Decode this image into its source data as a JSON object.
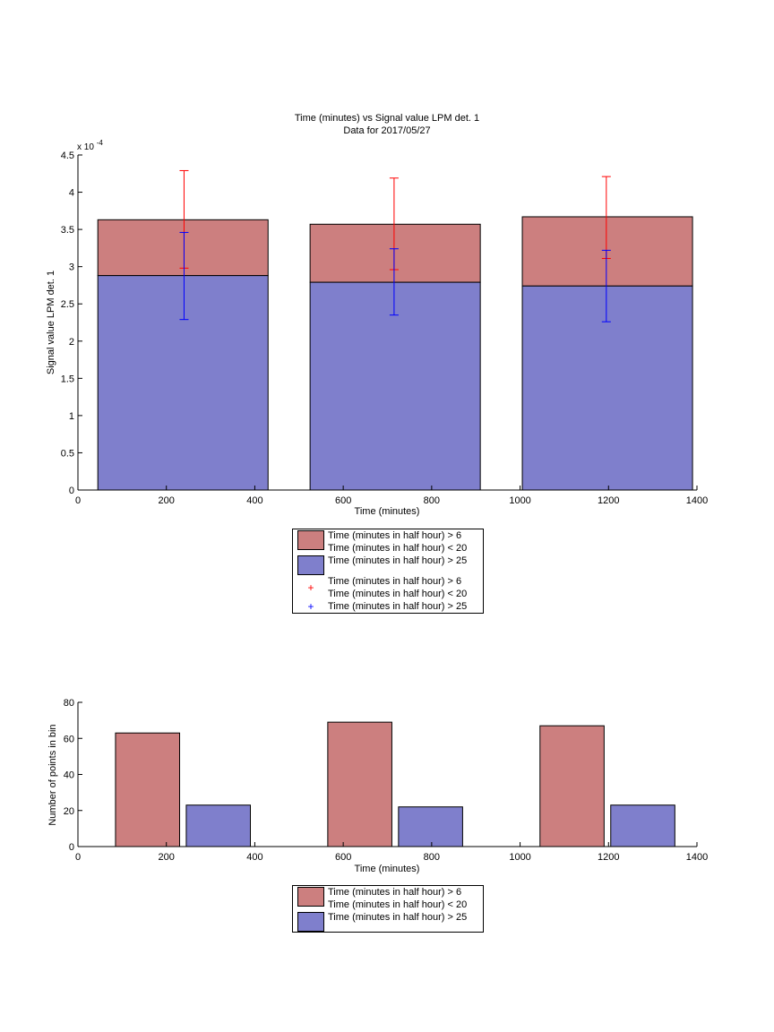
{
  "colors": {
    "red_fill": "#cc7f7f",
    "blue_fill": "#7f7fcc",
    "red_line": "#ff0000",
    "blue_line": "#0000ff"
  },
  "chart_data": [
    {
      "type": "bar",
      "title": "Time (minutes) vs Signal value LPM det. 1",
      "subtitle": "Data for 2017/05/27",
      "xlabel": "Time (minutes)",
      "ylabel": "Signal value LPM det. 1",
      "y_exponent_label": "x 10",
      "y_exponent": "-4",
      "xlim": [
        0,
        1400
      ],
      "ylim": [
        0,
        4.5
      ],
      "x_ticks": [
        0,
        200,
        400,
        600,
        800,
        1000,
        1200,
        1400
      ],
      "y_ticks": [
        0,
        0.5,
        1,
        1.5,
        2,
        2.5,
        3,
        3.5,
        4,
        4.5
      ],
      "y_tick_labels": [
        "0",
        "0.5",
        "1",
        "1.5",
        "2",
        "2.5",
        "3",
        "3.5",
        "4",
        "4.5"
      ],
      "bar_ranges": [
        [
          45,
          430
        ],
        [
          525,
          910
        ],
        [
          1005,
          1390
        ]
      ],
      "series": [
        {
          "name": "Time (minutes in half hour) > 6 Time (minutes in half hour) < 20",
          "color": "#cc7f7f",
          "values": [
            3.63,
            3.57,
            3.67
          ]
        },
        {
          "name": "Time (minutes in half hour) > 25",
          "color": "#7f7fcc",
          "values": [
            2.88,
            2.79,
            2.74
          ]
        }
      ],
      "errorbars": [
        {
          "series": "Time (minutes in half hour) > 6 Time (minutes in half hour) < 20",
          "color": "#ff0000",
          "x": [
            240,
            715,
            1195
          ],
          "low": [
            2.98,
            2.96,
            3.11
          ],
          "high": [
            4.29,
            4.19,
            4.21
          ]
        },
        {
          "series": "Time (minutes in half hour) > 25",
          "color": "#0000ff",
          "x": [
            240,
            715,
            1195
          ],
          "low": [
            2.29,
            2.35,
            2.26
          ],
          "high": [
            3.46,
            3.24,
            3.22
          ]
        }
      ],
      "legend": [
        {
          "kind": "swatch",
          "color": "#cc7f7f",
          "lines": [
            "Time (minutes in half hour) > 6",
            "Time (minutes in half hour) < 20"
          ]
        },
        {
          "kind": "swatch",
          "color": "#7f7fcc",
          "lines": [
            "Time (minutes in half hour) > 25"
          ]
        },
        {
          "kind": "marker",
          "color": "#ff0000",
          "symbol": "+",
          "lines": [
            "Time (minutes in half hour) > 6",
            "Time (minutes in half hour) < 20"
          ]
        },
        {
          "kind": "marker",
          "color": "#0000ff",
          "symbol": "+",
          "lines": [
            "Time (minutes in half hour) > 25"
          ]
        }
      ]
    },
    {
      "type": "bar",
      "xlabel": "Time (minutes)",
      "ylabel": "Number of points in bin",
      "xlim": [
        0,
        1400
      ],
      "ylim": [
        0,
        80
      ],
      "x_ticks": [
        0,
        200,
        400,
        600,
        800,
        1000,
        1200,
        1400
      ],
      "y_ticks": [
        0,
        20,
        40,
        60,
        80
      ],
      "y_tick_labels": [
        "0",
        "20",
        "40",
        "60",
        "80"
      ],
      "series": [
        {
          "name": "Time (minutes in half hour) > 6 Time (minutes in half hour) < 20",
          "color": "#cc7f7f",
          "bar_ranges": [
            [
              85,
              230
            ],
            [
              565,
              710
            ],
            [
              1045,
              1190
            ]
          ],
          "values": [
            63,
            69,
            67
          ]
        },
        {
          "name": "Time (minutes in half hour) > 25",
          "color": "#7f7fcc",
          "bar_ranges": [
            [
              245,
              390
            ],
            [
              725,
              870
            ],
            [
              1205,
              1350
            ]
          ],
          "values": [
            23,
            22,
            23
          ]
        }
      ],
      "legend": [
        {
          "kind": "swatch",
          "color": "#cc7f7f",
          "lines": [
            "Time (minutes in half hour) > 6",
            "Time (minutes in half hour) < 20"
          ]
        },
        {
          "kind": "swatch",
          "color": "#7f7fcc",
          "lines": [
            "Time (minutes in half hour) > 25"
          ]
        }
      ]
    }
  ]
}
